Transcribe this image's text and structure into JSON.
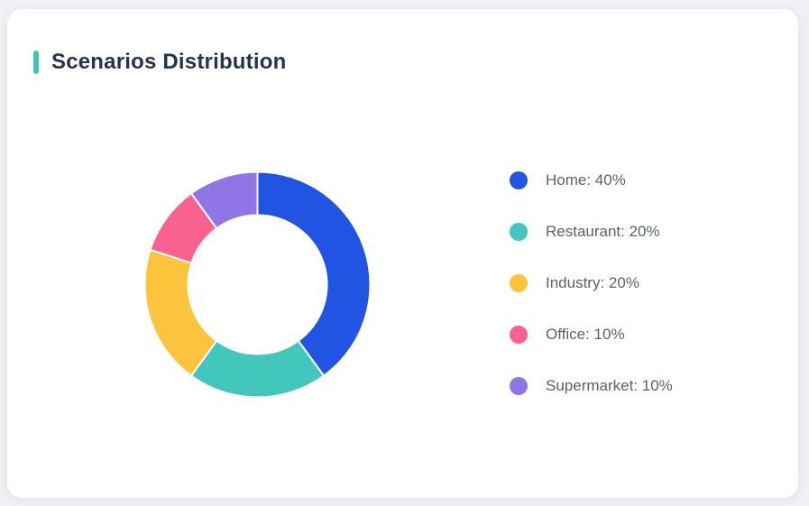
{
  "header": {
    "title": "Scenarios Distribution",
    "accent_color": "#3ec3b6"
  },
  "chart_data": {
    "type": "pie",
    "subtype": "donut",
    "title": "Scenarios Distribution",
    "categories": [
      "Home",
      "Restaurant",
      "Industry",
      "Office",
      "Supermarket"
    ],
    "values": [
      40,
      20,
      20,
      10,
      10
    ],
    "unit": "%",
    "colors": [
      "#2254e3",
      "#41c7bb",
      "#fcc33c",
      "#f9618f",
      "#9075e6"
    ],
    "legend_labels": [
      "Home: 40%",
      "Restaurant: 20%",
      "Industry: 20%",
      "Office: 10%",
      "Supermarket: 10%"
    ],
    "start_angle_deg": -90,
    "direction": "clockwise",
    "outer_radius": 125,
    "inner_radius": 77,
    "segment_gap_color": "#ffffff",
    "legend_position": "right",
    "legend_dot_colors": [
      "#2254e3",
      "#41c7bb",
      "#fcc33c",
      "#f9618f",
      "#9075e6"
    ]
  }
}
